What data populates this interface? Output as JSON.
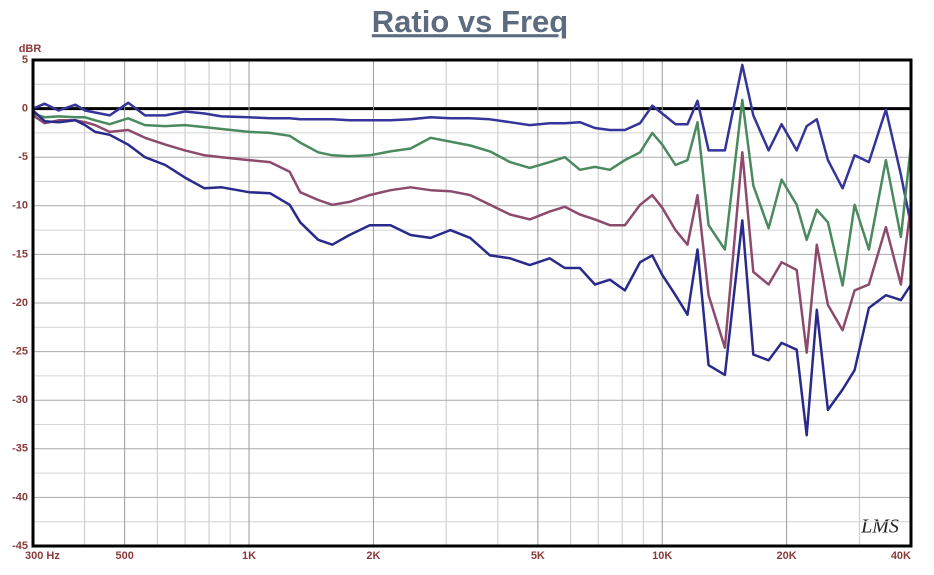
{
  "chart_data": {
    "type": "line",
    "title": "Ratio vs Freq",
    "y_label": "dBR",
    "watermark": "LMS",
    "x": [
      300,
      320,
      346,
      380,
      401,
      424,
      460,
      510,
      560,
      627,
      700,
      780,
      858,
      1000,
      1124,
      1254,
      1330,
      1470,
      1590,
      1750,
      1960,
      2200,
      2460,
      2750,
      3070,
      3430,
      3830,
      4280,
      4780,
      5340,
      5810,
      6320,
      6870,
      7470,
      8120,
      8840,
      9460,
      10000,
      10770,
      11510,
      12170,
      12950,
      14180,
      15620,
      16610,
      18090,
      19450,
      21150,
      22370,
      23660,
      25180,
      27320,
      29220,
      31640,
      34770,
      37820,
      40000
    ],
    "series": [
      {
        "color": "#34349a",
        "values": [
          0,
          0.5,
          -0.2,
          0.4,
          -0.2,
          -0.4,
          -0.7,
          0.6,
          -0.7,
          -0.7,
          -0.3,
          -0.5,
          -0.8,
          -0.9,
          -1.0,
          -1.0,
          -1.1,
          -1.1,
          -1.1,
          -1.2,
          -1.2,
          -1.2,
          -1.1,
          -0.9,
          -1.0,
          -1.0,
          -1.1,
          -1.4,
          -1.7,
          -1.5,
          -1.5,
          -1.4,
          -2.0,
          -2.2,
          -2.2,
          -1.5,
          0.3,
          -0.5,
          -1.6,
          -1.6,
          0.8,
          -4.3,
          -4.3,
          4.5,
          -0.7,
          -4.3,
          -1.6,
          -4.3,
          -1.8,
          -1.1,
          -5.3,
          -8.2,
          -4.8,
          -5.5,
          -0.1,
          -6.8,
          -12.0
        ]
      },
      {
        "color": "#4a8a5e",
        "values": [
          -0.5,
          -0.9,
          -0.8,
          -0.9,
          -0.9,
          -1.2,
          -1.6,
          -1.0,
          -1.7,
          -1.8,
          -1.7,
          -1.9,
          -2.1,
          -2.4,
          -2.5,
          -2.8,
          -3.5,
          -4.5,
          -4.8,
          -4.9,
          -4.8,
          -4.4,
          -4.1,
          -3.0,
          -3.4,
          -3.8,
          -4.4,
          -5.5,
          -6.1,
          -5.5,
          -5.0,
          -6.3,
          -6.0,
          -6.3,
          -5.3,
          -4.5,
          -2.5,
          -3.7,
          -5.8,
          -5.3,
          -1.4,
          -12.0,
          -14.5,
          0.9,
          -7.9,
          -12.3,
          -7.3,
          -9.9,
          -13.5,
          -10.4,
          -11.7,
          -18.2,
          -9.9,
          -14.5,
          -5.3,
          -13.2,
          -3.7
        ]
      },
      {
        "color": "#8c4a6c",
        "values": [
          -0.7,
          -1.5,
          -1.2,
          -1.2,
          -1.4,
          -1.7,
          -2.4,
          -2.2,
          -3.0,
          -3.7,
          -4.3,
          -4.8,
          -5.0,
          -5.3,
          -5.5,
          -6.5,
          -8.6,
          -9.4,
          -9.9,
          -9.6,
          -8.9,
          -8.4,
          -8.1,
          -8.4,
          -8.5,
          -8.9,
          -9.9,
          -10.9,
          -11.4,
          -10.6,
          -10.1,
          -10.9,
          -11.4,
          -12.0,
          -12.0,
          -9.9,
          -8.9,
          -10.2,
          -12.5,
          -14.0,
          -8.9,
          -19.2,
          -24.6,
          -4.5,
          -16.8,
          -18.1,
          -15.8,
          -16.6,
          -25.1,
          -14.0,
          -20.2,
          -22.8,
          -18.7,
          -18.1,
          -12.2,
          -18.1,
          -9.9
        ]
      },
      {
        "color": "#2a2a8c",
        "values": [
          -0.2,
          -1.3,
          -1.4,
          -1.2,
          -1.7,
          -2.4,
          -2.7,
          -3.7,
          -5.0,
          -5.8,
          -7.1,
          -8.2,
          -8.1,
          -8.6,
          -8.7,
          -9.9,
          -11.7,
          -13.5,
          -14.0,
          -13.0,
          -12.0,
          -12.0,
          -13.0,
          -13.3,
          -12.5,
          -13.3,
          -15.1,
          -15.4,
          -16.1,
          -15.4,
          -16.4,
          -16.4,
          -18.1,
          -17.6,
          -18.7,
          -15.8,
          -15.1,
          -17.1,
          -19.2,
          -21.2,
          -14.5,
          -26.4,
          -27.4,
          -11.5,
          -25.3,
          -25.9,
          -24.1,
          -24.8,
          -33.6,
          -20.7,
          -31.0,
          -28.9,
          -26.9,
          -20.5,
          -19.2,
          -19.7,
          -18.1
        ]
      }
    ],
    "xlim": [
      300,
      40000
    ],
    "ylim": [
      -45,
      5
    ],
    "x_log": true,
    "grid": true,
    "xticks": [
      {
        "value": 300,
        "label": "300  Hz"
      },
      500,
      {
        "value": 1000,
        "label": "1K"
      },
      {
        "value": 2000,
        "label": "2K"
      },
      {
        "value": 5000,
        "label": "5K"
      },
      {
        "value": 10000,
        "label": "10K"
      },
      {
        "value": 20000,
        "label": "20K"
      },
      {
        "value": 40000,
        "label": "40K"
      }
    ],
    "yticks": [
      5,
      0,
      -5,
      -10,
      -15,
      -20,
      -25,
      -30,
      -35,
      -40,
      -45
    ],
    "x_minor_ticks": [
      400,
      600,
      700,
      800,
      900,
      3000,
      4000,
      6000,
      7000,
      8000,
      9000,
      30000
    ],
    "y_minor_ticks": [
      2.5,
      -2.5,
      -7.5,
      -12.5,
      -17.5,
      -22.5,
      -27.5,
      -32.5,
      -37.5,
      -42.5
    ]
  }
}
